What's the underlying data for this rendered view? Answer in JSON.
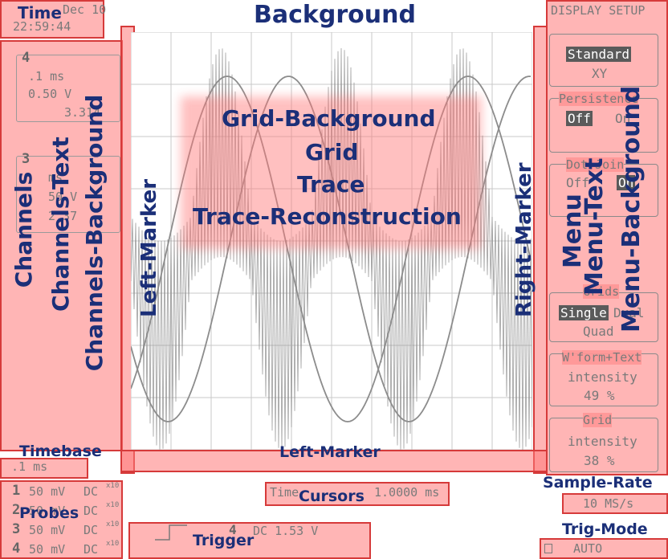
{
  "time": {
    "date": "Dec 10",
    "clock": "22:59:44"
  },
  "channels": [
    {
      "number": "4",
      "timebase": ".1 ms",
      "volts": "0.50 V",
      "value": "3.314"
    },
    {
      "number": "3",
      "timebase": "ms",
      "volts": "50 V",
      "value": "2.37"
    }
  ],
  "menu": {
    "title": "DISPLAY SETUP",
    "display_mode": {
      "selected": "Standard",
      "other": "XY"
    },
    "persistence": {
      "label": "Persistence",
      "off": "Off",
      "on": "On"
    },
    "dot_join": {
      "label": "Dot Join",
      "off": "Off",
      "on": "On"
    },
    "grids": {
      "label": "Grids",
      "single": "Single",
      "dual": "Dual",
      "quad": "Quad"
    },
    "wform_text": {
      "label": "W'form+Text",
      "label2": "intensity",
      "value": "49 %"
    },
    "grid_intensity": {
      "label": "Grid",
      "label2": "intensity",
      "value": "38 %"
    }
  },
  "timebase": {
    "value": ".1 ms"
  },
  "probes": [
    {
      "number": "1",
      "volts": "50 mV",
      "coupling": "DC",
      "atten": "x10"
    },
    {
      "number": "2",
      "volts": "50 mV",
      "coupling": "DC",
      "atten": "x10"
    },
    {
      "number": "3",
      "volts": "50 mV",
      "coupling": "DC",
      "atten": "x10"
    },
    {
      "number": "4",
      "volts": "50 mV",
      "coupling": "DC",
      "atten": "x10"
    }
  ],
  "cursors": {
    "label": "Time",
    "value": "1.0000 ms"
  },
  "trigger": {
    "channel": "4",
    "coupling_level": "DC 1.53 V"
  },
  "sample_rate": {
    "value": "10 MS/s"
  },
  "trig_mode": {
    "value": "AUTO"
  },
  "annotations": {
    "time": "Time",
    "background": "Background",
    "channels": "Channels",
    "channels_text": "Channels-Text",
    "channels_background": "Channels-Background",
    "grid_background": "Grid-Background",
    "grid": "Grid",
    "trace": "Trace",
    "trace_reconstruction": "Trace-Reconstruction",
    "left_marker": "Left-Marker",
    "right_marker": "Right-Marker",
    "left_marker_bottom": "Left-Marker",
    "menu": "Menu",
    "menu_text": "Menu-Text",
    "menu_background": "Menu-Background",
    "timebase": "Timebase",
    "probes": "Probes",
    "cursors": "Cursors",
    "trigger": "Trigger",
    "sample_rate": "Sample-Rate",
    "trig_mode": "Trig-Mode"
  },
  "trace": {
    "color": "#8c8c8c",
    "grid_color": "#c8c8c8"
  }
}
